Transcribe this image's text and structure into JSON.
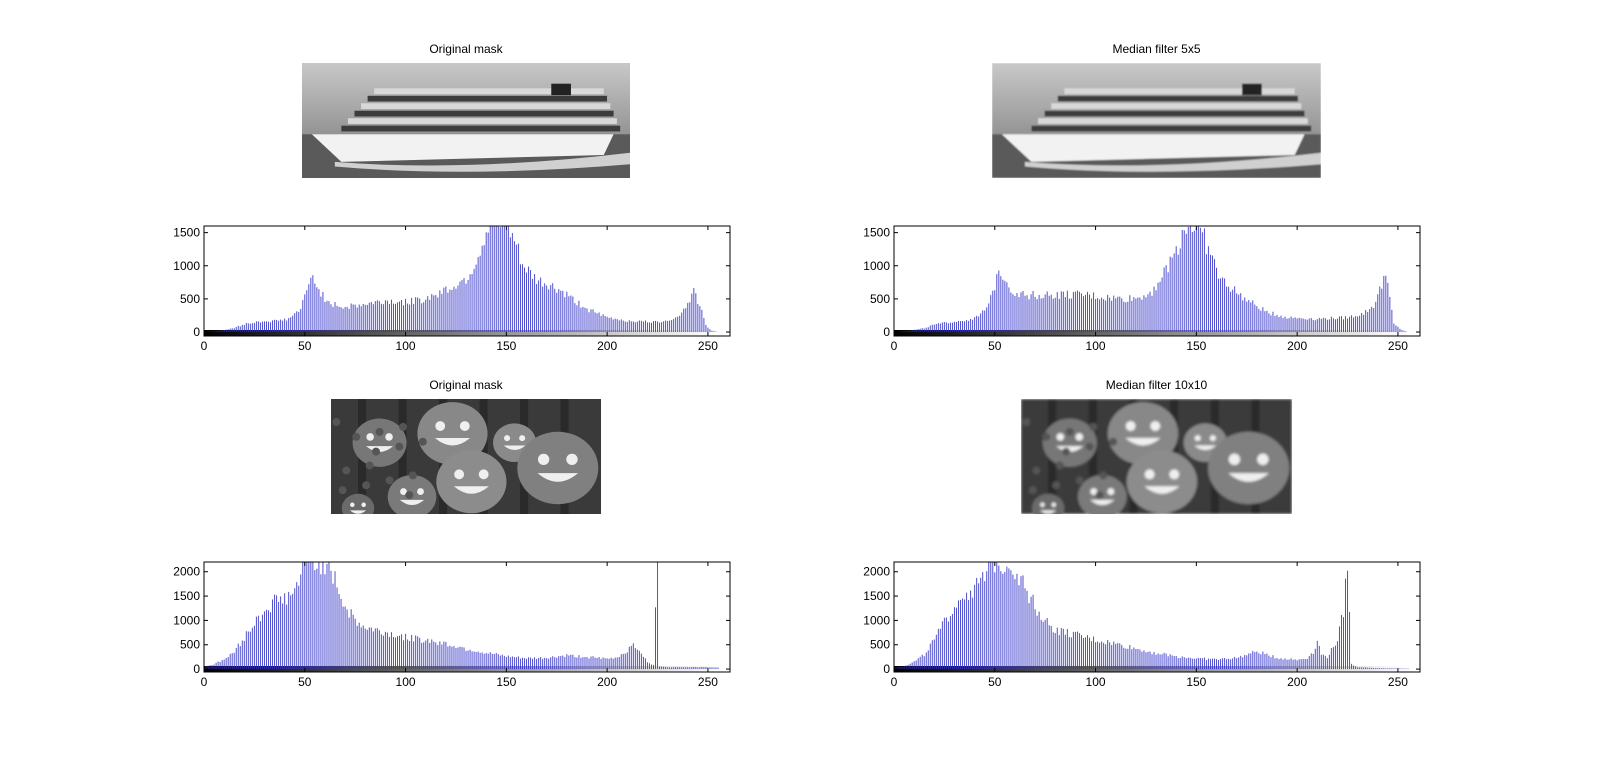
{
  "figure": {
    "panels": [
      {
        "title": "Original mask",
        "image": "cruise-ship-grayscale"
      },
      {
        "title": "Median filter 5x5",
        "image": "cruise-ship-grayscale-filtered"
      },
      {
        "title": "Original mask",
        "image": "pumpkins-grayscale"
      },
      {
        "title": "Median filter 10x10",
        "image": "pumpkins-grayscale-filtered"
      }
    ]
  },
  "colors": {
    "bar": "#3030c8",
    "axis": "#000000",
    "colorbar_start": "#000000",
    "colorbar_end": "#ffffff"
  },
  "chart_data": [
    {
      "type": "bar",
      "title": "",
      "xlabel": "",
      "ylabel": "",
      "xlim": [
        0,
        255
      ],
      "ylim": [
        -60,
        1600
      ],
      "xticks": [
        "0",
        "50",
        "100",
        "150",
        "200",
        "250"
      ],
      "yticks": [
        "0",
        "500",
        "1000",
        "1500"
      ],
      "anchors": [
        [
          0,
          0
        ],
        [
          8,
          20
        ],
        [
          15,
          60
        ],
        [
          20,
          120
        ],
        [
          28,
          160
        ],
        [
          36,
          170
        ],
        [
          42,
          200
        ],
        [
          48,
          350
        ],
        [
          52,
          700
        ],
        [
          54,
          860
        ],
        [
          57,
          650
        ],
        [
          62,
          420
        ],
        [
          70,
          380
        ],
        [
          80,
          420
        ],
        [
          90,
          470
        ],
        [
          100,
          450
        ],
        [
          110,
          500
        ],
        [
          117,
          600
        ],
        [
          123,
          680
        ],
        [
          128,
          760
        ],
        [
          132,
          880
        ],
        [
          136,
          1150
        ],
        [
          140,
          1500
        ],
        [
          143,
          1600
        ],
        [
          146,
          1600
        ],
        [
          150,
          1600
        ],
        [
          155,
          1300
        ],
        [
          158,
          1000
        ],
        [
          165,
          780
        ],
        [
          172,
          700
        ],
        [
          178,
          600
        ],
        [
          185,
          450
        ],
        [
          192,
          320
        ],
        [
          200,
          220
        ],
        [
          210,
          170
        ],
        [
          225,
          150
        ],
        [
          235,
          220
        ],
        [
          240,
          430
        ],
        [
          243,
          620
        ],
        [
          246,
          400
        ],
        [
          249,
          100
        ],
        [
          252,
          20
        ],
        [
          255,
          0
        ]
      ]
    },
    {
      "type": "bar",
      "title": "",
      "xlabel": "",
      "ylabel": "",
      "xlim": [
        0,
        255
      ],
      "ylim": [
        -60,
        1600
      ],
      "xticks": [
        "0",
        "50",
        "100",
        "150",
        "200",
        "250"
      ],
      "yticks": [
        "0",
        "500",
        "1000",
        "1500"
      ],
      "anchors": [
        [
          0,
          0
        ],
        [
          8,
          20
        ],
        [
          15,
          60
        ],
        [
          20,
          110
        ],
        [
          28,
          150
        ],
        [
          36,
          180
        ],
        [
          42,
          230
        ],
        [
          47,
          400
        ],
        [
          50,
          700
        ],
        [
          52,
          960
        ],
        [
          55,
          850
        ],
        [
          58,
          620
        ],
        [
          65,
          560
        ],
        [
          75,
          560
        ],
        [
          85,
          560
        ],
        [
          95,
          560
        ],
        [
          105,
          520
        ],
        [
          115,
          500
        ],
        [
          122,
          520
        ],
        [
          128,
          620
        ],
        [
          134,
          880
        ],
        [
          138,
          1100
        ],
        [
          142,
          1400
        ],
        [
          145,
          1600
        ],
        [
          150,
          1600
        ],
        [
          154,
          1400
        ],
        [
          158,
          1100
        ],
        [
          162,
          800
        ],
        [
          168,
          650
        ],
        [
          175,
          480
        ],
        [
          185,
          300
        ],
        [
          195,
          220
        ],
        [
          210,
          200
        ],
        [
          225,
          220
        ],
        [
          233,
          280
        ],
        [
          238,
          400
        ],
        [
          242,
          700
        ],
        [
          244,
          960
        ],
        [
          246,
          500
        ],
        [
          248,
          120
        ],
        [
          252,
          30
        ],
        [
          255,
          0
        ]
      ]
    },
    {
      "type": "bar",
      "title": "",
      "xlabel": "",
      "ylabel": "",
      "xlim": [
        0,
        255
      ],
      "ylim": [
        -60,
        2200
      ],
      "xticks": [
        "0",
        "50",
        "100",
        "150",
        "200",
        "250"
      ],
      "yticks": [
        "0",
        "500",
        "1000",
        "1500",
        "2000"
      ],
      "anchors": [
        [
          0,
          50
        ],
        [
          5,
          100
        ],
        [
          10,
          200
        ],
        [
          15,
          350
        ],
        [
          20,
          650
        ],
        [
          25,
          950
        ],
        [
          30,
          1200
        ],
        [
          35,
          1400
        ],
        [
          40,
          1450
        ],
        [
          45,
          1600
        ],
        [
          48,
          1950
        ],
        [
          50,
          2200
        ],
        [
          55,
          2200
        ],
        [
          60,
          2200
        ],
        [
          63,
          2000
        ],
        [
          66,
          1700
        ],
        [
          70,
          1300
        ],
        [
          75,
          1000
        ],
        [
          80,
          850
        ],
        [
          90,
          750
        ],
        [
          100,
          650
        ],
        [
          110,
          600
        ],
        [
          120,
          520
        ],
        [
          130,
          420
        ],
        [
          140,
          330
        ],
        [
          150,
          260
        ],
        [
          160,
          220
        ],
        [
          170,
          230
        ],
        [
          180,
          280
        ],
        [
          190,
          250
        ],
        [
          200,
          210
        ],
        [
          205,
          240
        ],
        [
          210,
          380
        ],
        [
          213,
          550
        ],
        [
          216,
          350
        ],
        [
          220,
          150
        ],
        [
          223,
          80
        ],
        [
          225,
          2200
        ],
        [
          226,
          60
        ],
        [
          230,
          40
        ],
        [
          240,
          40
        ],
        [
          250,
          40
        ],
        [
          255,
          30
        ]
      ]
    },
    {
      "type": "bar",
      "title": "",
      "xlabel": "",
      "ylabel": "",
      "xlim": [
        0,
        255
      ],
      "ylim": [
        -60,
        2200
      ],
      "xticks": [
        "0",
        "50",
        "100",
        "150",
        "200",
        "250"
      ],
      "yticks": [
        "0",
        "500",
        "1000",
        "1500",
        "2000"
      ],
      "anchors": [
        [
          0,
          30
        ],
        [
          5,
          60
        ],
        [
          10,
          150
        ],
        [
          15,
          300
        ],
        [
          20,
          600
        ],
        [
          25,
          950
        ],
        [
          30,
          1300
        ],
        [
          35,
          1550
        ],
        [
          40,
          1650
        ],
        [
          45,
          1850
        ],
        [
          48,
          2200
        ],
        [
          55,
          2200
        ],
        [
          60,
          2050
        ],
        [
          65,
          1700
        ],
        [
          70,
          1300
        ],
        [
          75,
          1000
        ],
        [
          80,
          800
        ],
        [
          90,
          700
        ],
        [
          100,
          600
        ],
        [
          110,
          520
        ],
        [
          120,
          420
        ],
        [
          130,
          330
        ],
        [
          140,
          260
        ],
        [
          150,
          220
        ],
        [
          160,
          200
        ],
        [
          170,
          230
        ],
        [
          180,
          360
        ],
        [
          185,
          300
        ],
        [
          190,
          230
        ],
        [
          200,
          190
        ],
        [
          205,
          230
        ],
        [
          208,
          350
        ],
        [
          210,
          600
        ],
        [
          212,
          300
        ],
        [
          215,
          250
        ],
        [
          220,
          600
        ],
        [
          223,
          1200
        ],
        [
          225,
          2200
        ],
        [
          227,
          100
        ],
        [
          230,
          40
        ],
        [
          240,
          20
        ],
        [
          255,
          10
        ]
      ]
    }
  ]
}
